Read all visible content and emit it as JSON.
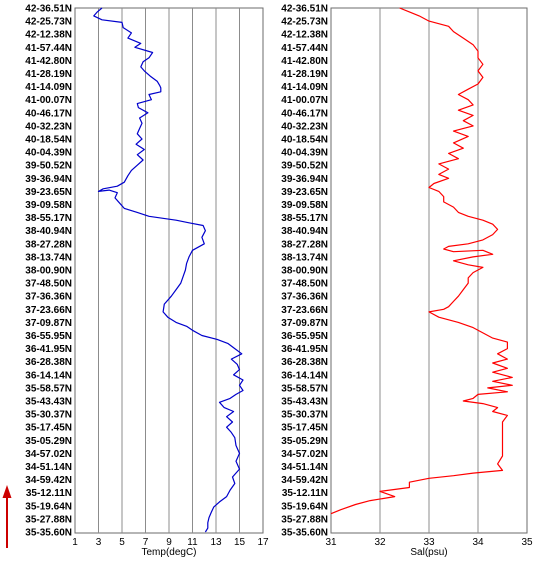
{
  "chart_data": [
    {
      "type": "line",
      "title": "",
      "xlabel": "Temp(degC)",
      "ylabel": "",
      "xlim": [
        1,
        17
      ],
      "x_ticks": [
        "1",
        "3",
        "5",
        "7",
        "9",
        "11",
        "13",
        "15",
        "17"
      ],
      "y_tick_labels": [
        "42-36.51N",
        "42-25.73N",
        "42-12.38N",
        "41-57.44N",
        "41-42.80N",
        "41-28.19N",
        "41-14.09N",
        "41-00.07N",
        "40-46.17N",
        "40-32.23N",
        "40-18.54N",
        "40-04.39N",
        "39-50.52N",
        "39-36.94N",
        "39-23.65N",
        "39-09.58N",
        "38-55.17N",
        "38-40.94N",
        "38-27.28N",
        "38-13.74N",
        "38-00.90N",
        "37-48.50N",
        "37-36.36N",
        "37-23.66N",
        "37-09.87N",
        "36-55.95N",
        "36-41.95N",
        "36-28.38N",
        "36-14.14N",
        "35-58.57N",
        "35-43.43N",
        "35-30.37N",
        "35-17.45N",
        "35-05.29N",
        "34-57.02N",
        "34-51.14N",
        "34-59.42N",
        "35-12.11N",
        "35-19.64N",
        "35-27.88N",
        "35-35.60N"
      ],
      "grid": true,
      "color": "#0000cc",
      "series": [
        {
          "values": [
            [
              3.3,
              0
            ],
            [
              2.9,
              0.3
            ],
            [
              2.6,
              0.6
            ],
            [
              3.3,
              0.9
            ],
            [
              5.0,
              1.1
            ],
            [
              5.1,
              1.5
            ],
            [
              5.8,
              1.9
            ],
            [
              5.5,
              2.3
            ],
            [
              6.6,
              2.7
            ],
            [
              6.1,
              3.0
            ],
            [
              7.6,
              3.4
            ],
            [
              7.3,
              3.8
            ],
            [
              6.8,
              4.1
            ],
            [
              6.6,
              4.5
            ],
            [
              6.9,
              4.8
            ],
            [
              7.4,
              5.2
            ],
            [
              8.0,
              5.6
            ],
            [
              8.2,
              5.9
            ],
            [
              8.3,
              6.1
            ],
            [
              8.3,
              6.4
            ],
            [
              7.3,
              6.6
            ],
            [
              7.5,
              7.0
            ],
            [
              6.3,
              7.3
            ],
            [
              6.4,
              7.6
            ],
            [
              7.2,
              8.0
            ],
            [
              6.5,
              8.4
            ],
            [
              6.7,
              8.8
            ],
            [
              6.5,
              9.2
            ],
            [
              6.3,
              9.6
            ],
            [
              6.7,
              10.0
            ],
            [
              6.2,
              10.4
            ],
            [
              6.9,
              10.8
            ],
            [
              6.3,
              11.2
            ],
            [
              6.8,
              11.6
            ],
            [
              6.3,
              12.0
            ],
            [
              5.8,
              12.4
            ],
            [
              5.5,
              12.8
            ],
            [
              5.2,
              13.3
            ],
            [
              4.6,
              13.6
            ],
            [
              3.4,
              13.8
            ],
            [
              3.0,
              14.0
            ],
            [
              3.9,
              13.9
            ],
            [
              4.6,
              14.1
            ],
            [
              4.4,
              14.5
            ],
            [
              4.8,
              14.9
            ],
            [
              5.2,
              15.3
            ],
            [
              6.3,
              15.6
            ],
            [
              7.3,
              15.9
            ],
            [
              9.6,
              16.2
            ],
            [
              10.7,
              16.4
            ],
            [
              11.9,
              16.6
            ],
            [
              12.1,
              17.0
            ],
            [
              11.8,
              17.5
            ],
            [
              12.0,
              18.0
            ],
            [
              11.0,
              18.5
            ],
            [
              10.7,
              19.0
            ],
            [
              10.5,
              19.5
            ],
            [
              10.4,
              20.0
            ],
            [
              10.2,
              20.5
            ],
            [
              10.0,
              21.0
            ],
            [
              9.6,
              21.5
            ],
            [
              9.2,
              22.0
            ],
            [
              8.6,
              22.6
            ],
            [
              8.5,
              23.2
            ],
            [
              8.9,
              23.6
            ],
            [
              9.6,
              24.0
            ],
            [
              10.5,
              24.3
            ],
            [
              11.0,
              24.6
            ],
            [
              11.8,
              25.0
            ],
            [
              13.1,
              25.3
            ],
            [
              14.0,
              25.6
            ],
            [
              14.6,
              26.0
            ],
            [
              15.2,
              26.4
            ],
            [
              14.3,
              26.8
            ],
            [
              14.8,
              27.2
            ],
            [
              15.0,
              27.6
            ],
            [
              14.5,
              28.0
            ],
            [
              15.3,
              28.4
            ],
            [
              15.0,
              28.8
            ],
            [
              15.3,
              29.2
            ],
            [
              14.7,
              29.5
            ],
            [
              14.2,
              29.8
            ],
            [
              13.3,
              30.1
            ],
            [
              13.7,
              30.5
            ],
            [
              14.5,
              30.8
            ],
            [
              13.9,
              31.2
            ],
            [
              14.4,
              31.6
            ],
            [
              13.9,
              32.0
            ],
            [
              14.3,
              32.4
            ],
            [
              14.6,
              32.8
            ],
            [
              14.7,
              33.4
            ],
            [
              15.0,
              34.0
            ],
            [
              14.7,
              34.6
            ],
            [
              15.0,
              35.2
            ],
            [
              14.4,
              35.8
            ],
            [
              14.6,
              36.3
            ],
            [
              14.2,
              36.8
            ],
            [
              13.9,
              37.3
            ],
            [
              13.3,
              37.7
            ],
            [
              12.8,
              38.1
            ],
            [
              12.6,
              38.5
            ],
            [
              12.4,
              38.9
            ],
            [
              12.3,
              39.3
            ],
            [
              12.3,
              39.7
            ],
            [
              12.1,
              40.0
            ]
          ]
        }
      ]
    },
    {
      "type": "line",
      "title": "",
      "xlabel": "Sal(psu)",
      "ylabel": "",
      "xlim": [
        31,
        35
      ],
      "x_ticks": [
        "31",
        "32",
        "33",
        "34",
        "35"
      ],
      "y_tick_labels": [
        "42-36.51N",
        "42-25.73N",
        "42-12.38N",
        "41-57.44N",
        "41-42.80N",
        "41-28.19N",
        "41-14.09N",
        "41-00.07N",
        "40-46.17N",
        "40-32.23N",
        "40-18.54N",
        "40-04.39N",
        "39-50.52N",
        "39-36.94N",
        "39-23.65N",
        "39-09.58N",
        "38-55.17N",
        "38-40.94N",
        "38-27.28N",
        "38-13.74N",
        "38-00.90N",
        "37-48.50N",
        "37-36.36N",
        "37-23.66N",
        "37-09.87N",
        "36-55.95N",
        "36-41.95N",
        "36-28.38N",
        "36-14.14N",
        "35-58.57N",
        "35-43.43N",
        "35-30.37N",
        "35-17.45N",
        "35-05.29N",
        "34-57.02N",
        "34-51.14N",
        "34-59.42N",
        "35-12.11N",
        "35-19.64N",
        "35-27.88N",
        "35-35.60N"
      ],
      "grid": true,
      "color": "#ff0000",
      "series": [
        {
          "values": [
            [
              32.4,
              0
            ],
            [
              32.6,
              0.3
            ],
            [
              32.8,
              0.6
            ],
            [
              33.0,
              1.0
            ],
            [
              33.4,
              1.4
            ],
            [
              33.5,
              1.8
            ],
            [
              33.7,
              2.3
            ],
            [
              33.9,
              2.8
            ],
            [
              34.0,
              3.3
            ],
            [
              34.0,
              3.8
            ],
            [
              34.1,
              4.3
            ],
            [
              34.0,
              4.8
            ],
            [
              34.1,
              5.3
            ],
            [
              34.0,
              5.8
            ],
            [
              33.8,
              6.2
            ],
            [
              33.6,
              6.6
            ],
            [
              33.8,
              7.0
            ],
            [
              33.9,
              7.4
            ],
            [
              33.6,
              7.8
            ],
            [
              33.9,
              8.2
            ],
            [
              33.7,
              8.6
            ],
            [
              33.9,
              9.0
            ],
            [
              33.5,
              9.4
            ],
            [
              33.8,
              9.8
            ],
            [
              33.5,
              10.3
            ],
            [
              33.7,
              10.7
            ],
            [
              33.4,
              11.1
            ],
            [
              33.6,
              11.5
            ],
            [
              33.2,
              11.9
            ],
            [
              33.4,
              12.3
            ],
            [
              33.2,
              12.7
            ],
            [
              33.4,
              13.0
            ],
            [
              33.1,
              13.4
            ],
            [
              33.0,
              13.7
            ],
            [
              33.2,
              14.0
            ],
            [
              33.3,
              14.4
            ],
            [
              33.3,
              14.8
            ],
            [
              33.5,
              15.2
            ],
            [
              33.6,
              15.6
            ],
            [
              33.8,
              15.9
            ],
            [
              34.1,
              16.2
            ],
            [
              34.3,
              16.5
            ],
            [
              34.4,
              16.9
            ],
            [
              34.3,
              17.3
            ],
            [
              34.1,
              17.7
            ],
            [
              33.8,
              18.0
            ],
            [
              33.4,
              18.2
            ],
            [
              33.3,
              18.4
            ],
            [
              33.5,
              18.6
            ],
            [
              34.1,
              18.5
            ],
            [
              34.3,
              18.8
            ],
            [
              33.9,
              19.0
            ],
            [
              33.5,
              19.3
            ],
            [
              33.8,
              19.6
            ],
            [
              34.1,
              19.8
            ],
            [
              33.9,
              20.2
            ],
            [
              33.8,
              20.6
            ],
            [
              33.8,
              21.0
            ],
            [
              33.7,
              21.5
            ],
            [
              33.6,
              22.0
            ],
            [
              33.5,
              22.4
            ],
            [
              33.4,
              22.8
            ],
            [
              33.3,
              23.0
            ],
            [
              33.0,
              23.2
            ],
            [
              33.2,
              23.6
            ],
            [
              33.6,
              24.0
            ],
            [
              33.9,
              24.4
            ],
            [
              34.1,
              24.8
            ],
            [
              34.3,
              25.2
            ],
            [
              34.6,
              25.5
            ],
            [
              34.6,
              26.0
            ],
            [
              34.4,
              26.4
            ],
            [
              34.6,
              26.8
            ],
            [
              34.3,
              27.1
            ],
            [
              34.6,
              27.5
            ],
            [
              34.3,
              27.8
            ],
            [
              34.7,
              28.2
            ],
            [
              34.3,
              28.5
            ],
            [
              34.7,
              28.8
            ],
            [
              34.2,
              29.0
            ],
            [
              34.6,
              29.3
            ],
            [
              34.0,
              29.5
            ],
            [
              33.9,
              29.8
            ],
            [
              33.7,
              30.0
            ],
            [
              34.1,
              30.2
            ],
            [
              34.4,
              30.5
            ],
            [
              34.3,
              30.8
            ],
            [
              34.6,
              31.1
            ],
            [
              34.5,
              31.6
            ],
            [
              34.5,
              32.2
            ],
            [
              34.5,
              32.8
            ],
            [
              34.5,
              33.5
            ],
            [
              34.5,
              34.2
            ],
            [
              34.4,
              34.8
            ],
            [
              34.5,
              35.3
            ],
            [
              33.9,
              35.5
            ],
            [
              33.5,
              35.7
            ],
            [
              33.0,
              35.9
            ],
            [
              32.6,
              36.2
            ],
            [
              32.6,
              36.6
            ],
            [
              32.0,
              36.9
            ],
            [
              32.3,
              37.3
            ],
            [
              31.8,
              37.6
            ],
            [
              31.5,
              37.9
            ],
            [
              31.2,
              38.3
            ],
            [
              31.0,
              38.6
            ]
          ]
        }
      ]
    }
  ]
}
